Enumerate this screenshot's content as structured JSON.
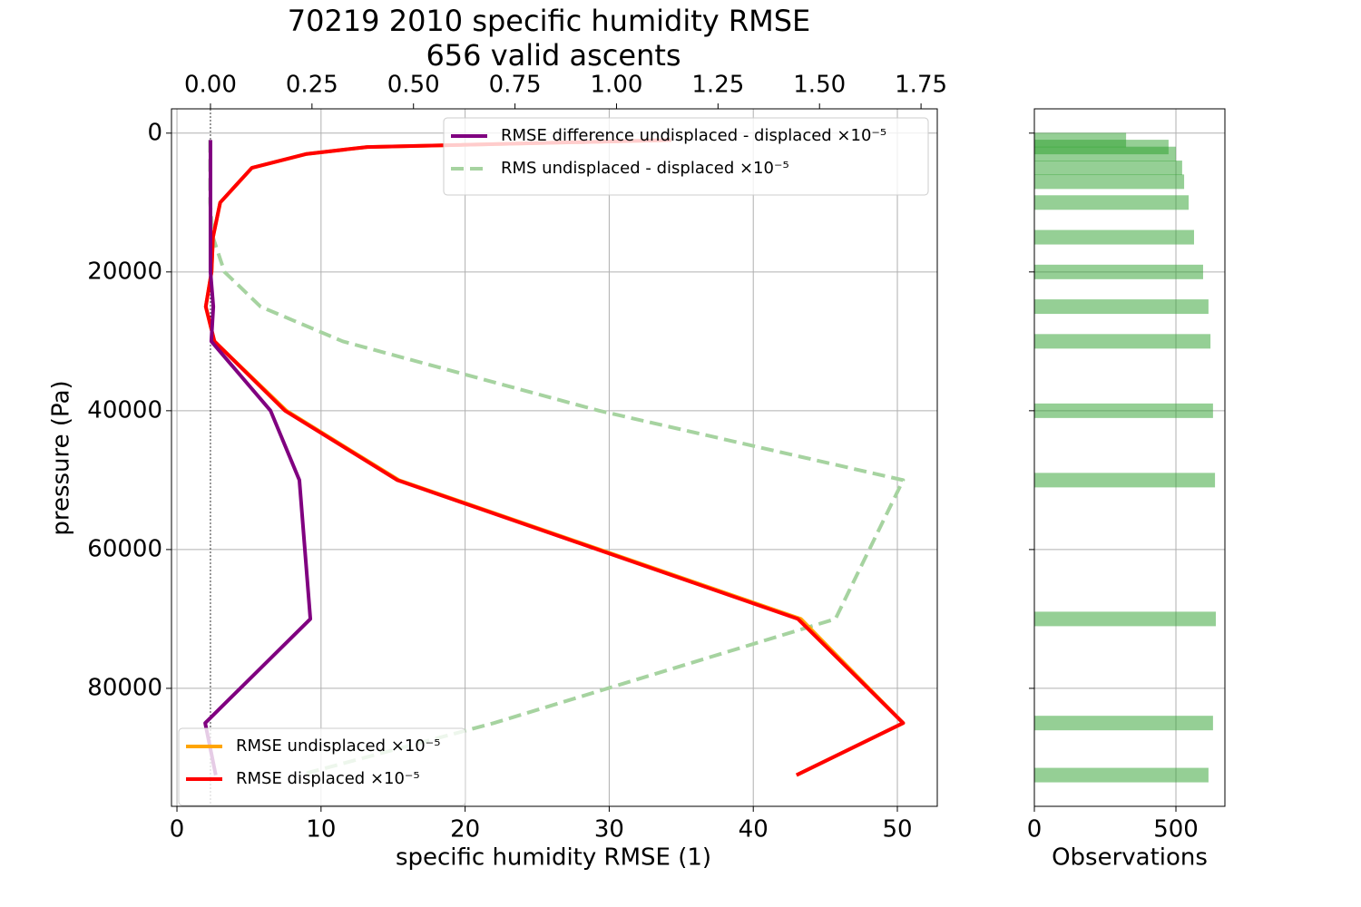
{
  "chart_data": [
    {
      "type": "line",
      "title": "70219 2010 specific humidity RMSE",
      "subtitle": "656 valid ascents",
      "x_label": "specific humidity RMSE (1)",
      "y_label": "pressure (Pa)",
      "y": [
        1000,
        2000,
        3000,
        5000,
        10000,
        15000,
        20000,
        25000,
        30000,
        40000,
        50000,
        70000,
        85000,
        92500
      ],
      "xlim": [
        -0.38,
        52.77
      ],
      "xticks": [
        0,
        10,
        20,
        30,
        40,
        50
      ],
      "x2lim": [
        -0.096,
        1.79
      ],
      "x2ticks": [
        {
          "value": 0,
          "label": "0.00"
        },
        {
          "value": 0.25,
          "label": "0.25"
        },
        {
          "value": 0.5,
          "label": "0.50"
        },
        {
          "value": 0.75,
          "label": "0.75"
        },
        {
          "value": 1,
          "label": "1.00"
        },
        {
          "value": 1.25,
          "label": "1.25"
        },
        {
          "value": 1.5,
          "label": "1.50"
        },
        {
          "value": 1.75,
          "label": "1.75"
        }
      ],
      "ylim": [
        97000,
        -3500
      ],
      "yticks": [
        0,
        20000,
        40000,
        60000,
        80000
      ],
      "grid": true,
      "series": [
        {
          "name": "RMSE undisplaced ×10⁻⁵",
          "color": "#ffa500",
          "dash": false,
          "legend_loc": "lower left",
          "values": [
            34.3,
            13.2,
            9.0,
            5.2,
            3.0,
            2.5,
            2.4,
            2.0,
            2.6,
            7.6,
            15.4,
            43.3,
            50.4,
            43.0
          ]
        },
        {
          "name": "RMSE displaced ×10⁻⁵",
          "color": "#ff0000",
          "dash": false,
          "legend_loc": "lower left",
          "values": [
            34.3,
            13.2,
            9.0,
            5.2,
            3.0,
            2.5,
            2.4,
            2.0,
            2.6,
            7.5,
            15.3,
            43.1,
            50.4,
            43.0
          ]
        },
        {
          "name": "RMSE difference undisplaced - displaced ×10⁻⁵",
          "color": "#800080",
          "dash": false,
          "axis": "x2",
          "legend_loc": "upper right",
          "values": [
            0.0,
            0.0,
            0.0,
            0.0,
            0.0,
            0.0,
            0.0,
            0.007,
            0.002,
            0.148,
            0.219,
            0.246,
            -0.013,
            0.013
          ]
        },
        {
          "name": "RMS undisplaced - displaced ×10⁻⁵",
          "color": "#a6d3a0",
          "dash": true,
          "legend_loc": "upper right",
          "values": [
            2.3,
            2.3,
            2.3,
            2.3,
            2.3,
            2.5,
            3.3,
            5.8,
            11.5,
            29.3,
            50.4,
            45.7,
            22.0,
            8.5
          ]
        }
      ]
    },
    {
      "type": "barh",
      "x_label": "Observations",
      "y": [
        1000,
        2000,
        3000,
        5000,
        7000,
        10000,
        15000,
        20000,
        25000,
        30000,
        40000,
        50000,
        70000,
        85000,
        92500
      ],
      "values": [
        324,
        474,
        500,
        522,
        529,
        545,
        564,
        596,
        615,
        622,
        631,
        638,
        641,
        631,
        615
      ],
      "color": "#2ca02c",
      "xlim": [
        0,
        673
      ],
      "xticks": [
        0,
        500
      ],
      "ylim": [
        97000,
        -3500
      ],
      "yticks": [
        0,
        20000,
        40000,
        60000,
        80000
      ],
      "grid": true
    }
  ]
}
